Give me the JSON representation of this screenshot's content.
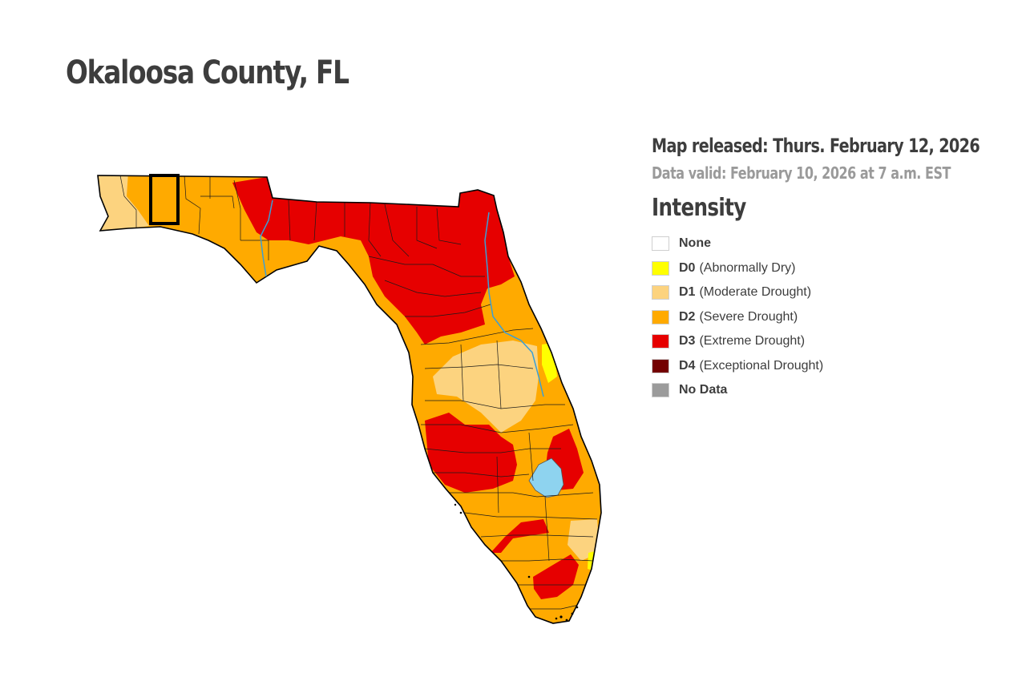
{
  "title": "Okaloosa County, FL",
  "map_released": "Map released: Thurs. February 12, 2026",
  "data_valid": "Data valid: February 10, 2026 at 7 a.m. EST",
  "legend": {
    "title": "Intensity",
    "items": [
      {
        "code": "None",
        "description": "",
        "color": "#ffffff"
      },
      {
        "code": "D0",
        "description": "(Abnormally Dry)",
        "color": "#ffff00"
      },
      {
        "code": "D1",
        "description": "(Moderate Drought)",
        "color": "#fcd37f"
      },
      {
        "code": "D2",
        "description": "(Severe Drought)",
        "color": "#ffaa00"
      },
      {
        "code": "D3",
        "description": "(Extreme Drought)",
        "color": "#e60000"
      },
      {
        "code": "D4",
        "description": "(Exceptional Drought)",
        "color": "#730000"
      },
      {
        "code": "No Data",
        "description": "",
        "color": "#9b9b9b"
      }
    ]
  },
  "map": {
    "state": "Florida",
    "highlighted_county": "Okaloosa",
    "water_color": "#8ed3ef",
    "outline_color": "#000000"
  }
}
